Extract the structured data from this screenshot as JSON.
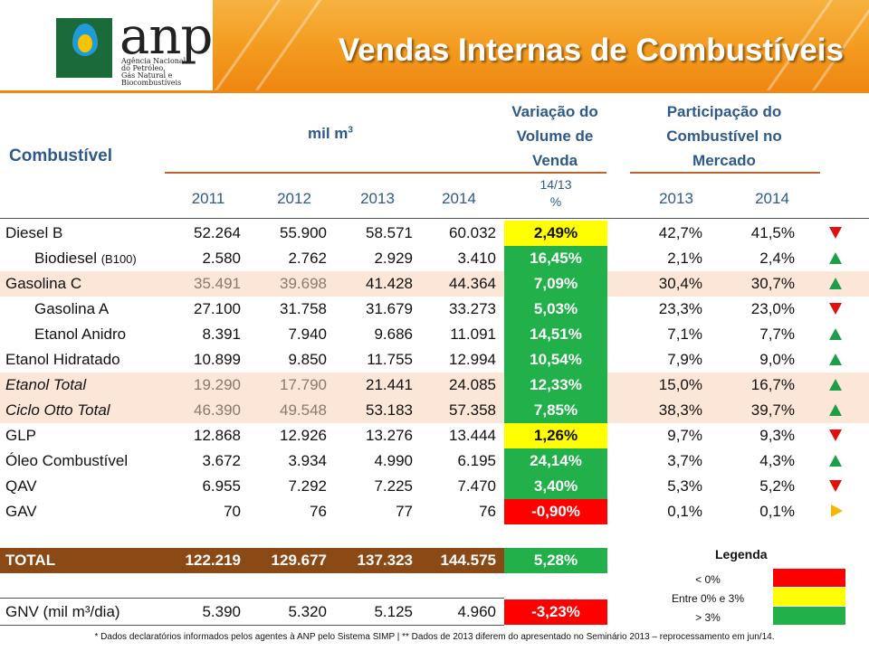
{
  "header": {
    "logo_text": "anp",
    "logo_subtitle": [
      "Agência Nacional",
      "do Petróleo,",
      "Gás Natural e Biocombustíveis"
    ],
    "title": "Vendas Internas de Combustíveis"
  },
  "table": {
    "col_fuel": "Combustível",
    "col_volume": "mil m",
    "col_volume_sup": "3",
    "col_variation": [
      "Variação do",
      "Volume de",
      "Venda"
    ],
    "col_share": [
      "Participação do",
      "Combustível no",
      "Mercado"
    ],
    "years": [
      "2011",
      "2012",
      "2013",
      "2014"
    ],
    "var_period": [
      "14/13",
      "%"
    ],
    "share_years": [
      "2013",
      "2014"
    ],
    "rows": [
      {
        "name": "Diesel B",
        "suffix": "",
        "v2011": "52.264",
        "v2012": "55.900",
        "v2013": "58.571",
        "v2014": "60.032",
        "variation": "2,49%",
        "share2013": "42,7%",
        "share2014": "41,5%",
        "trend": "down"
      },
      {
        "name": "Biodiesel ",
        "suffix": "(B100)",
        "v2011": "2.580",
        "v2012": "2.762",
        "v2013": "2.929",
        "v2014": "3.410",
        "variation": "16,45%",
        "share2013": "2,1%",
        "share2014": "2,4%",
        "trend": "up"
      },
      {
        "name": "Gasolina C",
        "suffix": "",
        "v2011": "35.491",
        "v2012": "39.698",
        "v2013": "41.428",
        "v2014": "44.364",
        "variation": "7,09%",
        "share2013": "30,4%",
        "share2014": "30,7%",
        "trend": "up"
      },
      {
        "name": "Gasolina A",
        "suffix": "",
        "v2011": "27.100",
        "v2012": "31.758",
        "v2013": "31.679",
        "v2014": "33.273",
        "variation": "5,03%",
        "share2013": "23,3%",
        "share2014": "23,0%",
        "trend": "down"
      },
      {
        "name": "Etanol Anidro",
        "suffix": "",
        "v2011": "8.391",
        "v2012": "7.940",
        "v2013": "9.686",
        "v2014": "11.091",
        "variation": "14,51%",
        "share2013": "7,1%",
        "share2014": "7,7%",
        "trend": "up"
      },
      {
        "name": "Etanol Hidratado",
        "suffix": "",
        "v2011": "10.899",
        "v2012": "9.850",
        "v2013": "11.755",
        "v2014": "12.994",
        "variation": "10,54%",
        "share2013": "7,9%",
        "share2014": "9,0%",
        "trend": "up"
      },
      {
        "name": "Etanol Total",
        "suffix": "",
        "v2011": "19.290",
        "v2012": "17.790",
        "v2013": "21.441",
        "v2014": "24.085",
        "variation": "12,33%",
        "share2013": "15,0%",
        "share2014": "16,7%",
        "trend": "up"
      },
      {
        "name": "Ciclo Otto Total",
        "suffix": "",
        "v2011": "46.390",
        "v2012": "49.548",
        "v2013": "53.183",
        "v2014": "57.358",
        "variation": "7,85%",
        "share2013": "38,3%",
        "share2014": "39,7%",
        "trend": "up"
      },
      {
        "name": "GLP",
        "suffix": "",
        "v2011": "12.868",
        "v2012": "12.926",
        "v2013": "13.276",
        "v2014": "13.444",
        "variation": "1,26%",
        "share2013": "9,7%",
        "share2014": "9,3%",
        "trend": "down"
      },
      {
        "name": "Óleo Combustível",
        "suffix": "",
        "v2011": "3.672",
        "v2012": "3.934",
        "v2013": "4.990",
        "v2014": "6.195",
        "variation": "24,14%",
        "share2013": "3,7%",
        "share2014": "4,3%",
        "trend": "up"
      },
      {
        "name": "QAV",
        "suffix": "",
        "v2011": "6.955",
        "v2012": "7.292",
        "v2013": "7.225",
        "v2014": "7.470",
        "variation": "3,40%",
        "share2013": "5,3%",
        "share2014": "5,2%",
        "trend": "down"
      },
      {
        "name": "GAV",
        "suffix": "",
        "v2011": "70",
        "v2012": "76",
        "v2013": "77",
        "v2014": "76",
        "variation": "-0,90%",
        "share2013": "0,1%",
        "share2014": "0,1%",
        "trend": "neutral"
      }
    ],
    "total": {
      "name": "TOTAL",
      "v2011": "122.219",
      "v2012": "129.677",
      "v2013": "137.323",
      "v2014": "144.575",
      "variation": "5,28%"
    },
    "gnv": {
      "name": "GNV (mil m³/dia)",
      "v2011": "5.390",
      "v2012": "5.320",
      "v2013": "5.125",
      "v2014": "4.960",
      "variation": "-3,23%"
    }
  },
  "legend": {
    "title": "Legenda",
    "items": [
      {
        "label": "< 0%",
        "color": "#ff0000"
      },
      {
        "label": "Entre 0% e 3%",
        "color": "#ffff00"
      },
      {
        "label": "> 3%",
        "color": "#22b04b"
      }
    ]
  },
  "colors": {
    "red": "#ff0000",
    "yellow": "#ffff00",
    "green": "#22b04b",
    "header_blue": "#2e5a8a",
    "total_brown": "#8b4a15"
  },
  "footnote": "* Dados declaratórios informados pelos agentes à ANP pelo Sistema SIMP | ** Dados de 2013 diferem do apresentado no Seminário 2013 – reprocessamento em jun/14."
}
